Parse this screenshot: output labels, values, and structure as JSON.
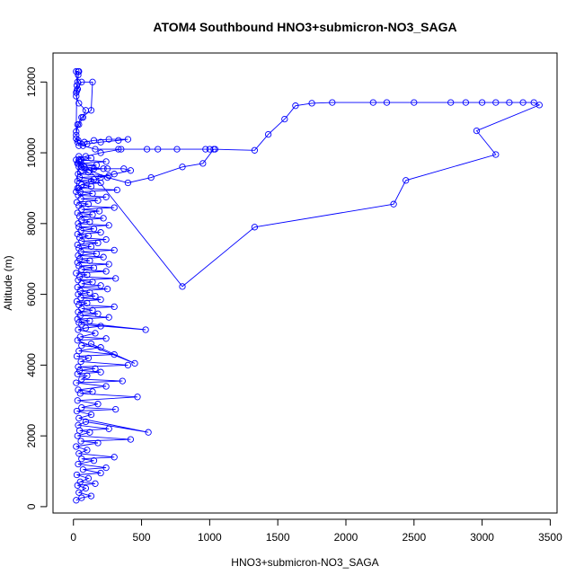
{
  "chart_data": {
    "type": "scatter",
    "title": "ATOM4 Southbound HNO3+submicron-NO3_SAGA",
    "xlabel": "HNO3+submicron-NO3_SAGA",
    "ylabel": "Altitude (m)",
    "xlim": [
      -150,
      3550
    ],
    "ylim": [
      -180,
      12820
    ],
    "xticks": [
      0,
      500,
      1000,
      1500,
      2000,
      2500,
      3000,
      3500
    ],
    "yticks": [
      0,
      2000,
      4000,
      6000,
      8000,
      10000,
      12000
    ],
    "xtick_labels": [
      "0",
      "500",
      "1000",
      "1500",
      "2000",
      "2500",
      "3000",
      "3500"
    ],
    "ytick_labels": [
      "0",
      "2000",
      "4000",
      "6000",
      "8000",
      "10000",
      "12000"
    ],
    "grid": false,
    "series": [
      {
        "color": "#0000ff",
        "marker": "open-circle",
        "connected": true,
        "x": [
          20,
          60,
          130,
          40,
          90,
          30,
          160,
          50,
          110,
          25,
          200,
          70,
          240,
          35,
          150,
          60,
          300,
          40,
          100,
          20,
          180,
          55,
          420,
          30,
          120,
          45,
          260,
          35,
          90,
          550,
          40,
          130,
          25,
          310,
          60,
          180,
          30,
          470,
          50,
          140,
          35,
          240,
          20,
          360,
          60,
          100,
          30,
          200,
          45,
          160,
          35,
          400,
          55,
          110,
          25,
          300,
          40,
          200,
          60,
          130,
          450,
          30,
          240,
          50,
          160,
          35,
          90,
          200,
          60,
          530,
          40,
          120,
          30,
          260,
          50,
          180,
          35,
          140,
          60,
          300,
          40,
          100,
          25,
          200,
          55,
          160,
          35,
          120,
          50,
          250,
          30,
          200,
          60,
          140,
          35,
          310,
          45,
          100,
          20,
          240,
          60,
          150,
          40,
          260,
          30,
          120,
          45,
          220,
          35,
          170,
          55,
          300,
          40,
          130,
          30,
          180,
          60,
          240,
          45,
          110,
          30,
          200,
          55,
          150,
          40,
          260,
          35,
          120,
          60,
          220,
          45,
          140,
          30,
          190,
          60,
          300,
          40,
          110,
          25,
          180,
          55,
          240,
          35,
          140,
          50,
          320,
          40,
          130,
          60,
          200,
          30,
          150,
          45,
          260,
          35,
          110,
          60,
          220,
          40,
          170,
          30,
          240,
          55,
          130,
          40,
          800,
          1330,
          2350,
          2440,
          3100,
          2960,
          3420,
          3380,
          3300,
          3200,
          3100,
          3000,
          2880,
          2770,
          2500,
          2300,
          2200,
          1900,
          1750,
          1630,
          1550,
          1430,
          1330,
          1030,
          950,
          800,
          570,
          400,
          250,
          120,
          60,
          35,
          20,
          40,
          80,
          150,
          250,
          370,
          420,
          300,
          200,
          130,
          60,
          30,
          20,
          40,
          90,
          200,
          350,
          620,
          970,
          1000,
          1040,
          760,
          540,
          330,
          160,
          70,
          30,
          20,
          35,
          80,
          150,
          260,
          400,
          330,
          200,
          100,
          40,
          20,
          30,
          60,
          130,
          140,
          60,
          30,
          20,
          40,
          90,
          70,
          40,
          20,
          25,
          30,
          35,
          40,
          20,
          25,
          30,
          20,
          35
        ],
        "y": [
          180,
          250,
          300,
          400,
          520,
          600,
          650,
          700,
          800,
          900,
          950,
          1050,
          1100,
          1200,
          1300,
          1350,
          1400,
          1500,
          1600,
          1700,
          1800,
          1850,
          1900,
          2000,
          2100,
          2150,
          2200,
          2300,
          2400,
          2100,
          2500,
          2600,
          2700,
          2750,
          2800,
          2900,
          3000,
          3100,
          3200,
          3250,
          3300,
          3400,
          3500,
          3550,
          3600,
          3700,
          3750,
          3800,
          3850,
          3900,
          3950,
          4000,
          4100,
          4200,
          4250,
          4300,
          4400,
          4500,
          4550,
          4600,
          4050,
          4700,
          4750,
          4800,
          4900,
          5000,
          5050,
          5100,
          5150,
          5000,
          5200,
          5250,
          5300,
          5350,
          5400,
          5450,
          5500,
          5550,
          5600,
          5650,
          5700,
          5750,
          5800,
          5850,
          5900,
          5950,
          6000,
          6050,
          6100,
          6150,
          6200,
          6250,
          6300,
          6350,
          6400,
          6450,
          6500,
          6550,
          6600,
          6650,
          6700,
          6750,
          6800,
          6850,
          6900,
          6950,
          7000,
          7050,
          7100,
          7150,
          7200,
          7250,
          7300,
          7350,
          7400,
          7450,
          7500,
          7550,
          7600,
          7650,
          7700,
          7750,
          7800,
          7850,
          7900,
          7950,
          8000,
          8050,
          8100,
          8150,
          8200,
          8250,
          8300,
          8350,
          8400,
          8450,
          8500,
          8550,
          8600,
          8650,
          8700,
          8750,
          8800,
          8850,
          8900,
          8950,
          9000,
          9050,
          9100,
          9150,
          9200,
          9250,
          9300,
          9350,
          9400,
          9450,
          9500,
          9550,
          9600,
          9650,
          9700,
          9750,
          9800,
          9850,
          9900,
          6220,
          7900,
          8550,
          9220,
          9950,
          10620,
          11350,
          11420,
          11420,
          11420,
          11420,
          11420,
          11420,
          11420,
          11420,
          11420,
          11420,
          11420,
          11400,
          11330,
          10950,
          10520,
          10070,
          10100,
          9700,
          9600,
          9300,
          9150,
          9300,
          9500,
          9600,
          9700,
          9800,
          9750,
          9600,
          9550,
          9550,
          9550,
          9500,
          9400,
          9300,
          9200,
          9100,
          9000,
          8900,
          9800,
          9900,
          10000,
          10100,
          10100,
          10100,
          10100,
          10100,
          10100,
          10100,
          10100,
          10100,
          10200,
          10300,
          10400,
          10350,
          10300,
          10350,
          10380,
          10380,
          10350,
          10300,
          10250,
          10200,
          10500,
          10800,
          11000,
          11200,
          12000,
          12000,
          11800,
          11600,
          11400,
          11200,
          11000,
          10800,
          10600,
          11900,
          12000,
          12200,
          12300,
          11700,
          11750,
          11800,
          12300,
          12300
        ]
      }
    ]
  }
}
